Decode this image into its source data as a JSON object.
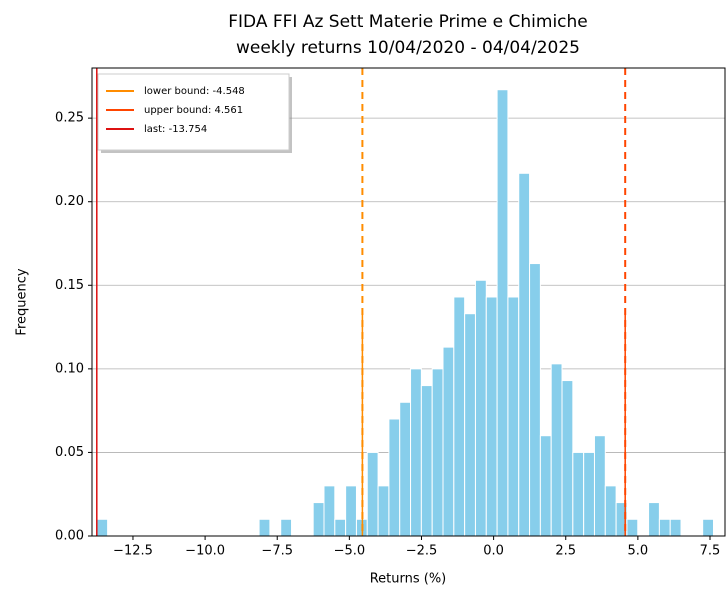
{
  "chart_data": {
    "type": "histogram",
    "title": "FIDA FFI Az Sett Materie Prime e Chimiche",
    "subtitle": "weekly returns 10/04/2020 - 04/04/2025",
    "x_label": "Returns (%)",
    "y_label": "Frequency",
    "color": "#87ceeb",
    "bins": [
      -13.754,
      -13.379,
      -13.004,
      -12.629,
      -12.254,
      -11.879,
      -11.504,
      -11.129,
      -10.754,
      -10.379,
      -10.004,
      -9.629,
      -9.254,
      -8.879,
      -8.504,
      -8.129,
      -7.754,
      -7.379,
      -7.004,
      -6.629,
      -6.254,
      -5.879,
      -5.504,
      -5.129,
      -4.754,
      -4.379,
      -4.004,
      -3.629,
      -3.254,
      -2.879,
      -2.504,
      -2.129,
      -1.754,
      -1.379,
      -1.004,
      -0.629,
      -0.254,
      0.121,
      0.496,
      0.871,
      1.246,
      1.621,
      1.996,
      2.371,
      2.746,
      3.121,
      3.496,
      3.871,
      4.246,
      4.621,
      4.996,
      5.371,
      5.746,
      6.121,
      6.496,
      6.871,
      7.246,
      7.621,
      7.996
    ],
    "values": [
      0.01,
      0,
      0,
      0,
      0,
      0,
      0,
      0,
      0,
      0,
      0,
      0,
      0,
      0,
      0,
      0.01,
      0,
      0.01,
      0,
      0,
      0.02,
      0.03,
      0.01,
      0.03,
      0.01,
      0.05,
      0.03,
      0.07,
      0.08,
      0.1,
      0.09,
      0.1,
      0.113,
      0.143,
      0.133,
      0.153,
      0.143,
      0.267,
      0.143,
      0.217,
      0.163,
      0.06,
      0.103,
      0.093,
      0.05,
      0.05,
      0.06,
      0.03,
      0.02,
      0.01,
      0,
      0.02,
      0.01,
      0.01,
      0,
      0,
      0.01,
      0
    ],
    "lines": [
      {
        "name": "lower bound: -4.548",
        "value": -4.548,
        "color": "#ff8c00",
        "dashed": true
      },
      {
        "name": "upper bound: 4.561",
        "value": 4.561,
        "color": "#ff4500",
        "dashed": true
      },
      {
        "name": "last: -13.754",
        "value": -13.754,
        "color": "#dd1111",
        "dashed": false
      }
    ],
    "xlim": [
      -13.92,
      8.02
    ],
    "ylim": [
      0,
      0.28
    ],
    "xticks": [
      {
        "value": -12.5,
        "label": "−12.5"
      },
      {
        "value": -10,
        "label": "−10.0"
      },
      {
        "value": -7.5,
        "label": "−7.5"
      },
      {
        "value": -5,
        "label": "−5.0"
      },
      {
        "value": -2.5,
        "label": "−2.5"
      },
      {
        "value": 0,
        "label": "0.0"
      },
      {
        "value": 2.5,
        "label": "2.5"
      },
      {
        "value": 5,
        "label": "5.0"
      },
      {
        "value": 7.5,
        "label": "7.5"
      }
    ],
    "yticks": [
      {
        "value": 0,
        "label": "0.00"
      },
      {
        "value": 0.05,
        "label": "0.05"
      },
      {
        "value": 0.1,
        "label": "0.10"
      },
      {
        "value": 0.15,
        "label": "0.15"
      },
      {
        "value": 0.2,
        "label": "0.20"
      },
      {
        "value": 0.25,
        "label": "0.25"
      }
    ],
    "grid": true,
    "legend": "upper-left"
  }
}
